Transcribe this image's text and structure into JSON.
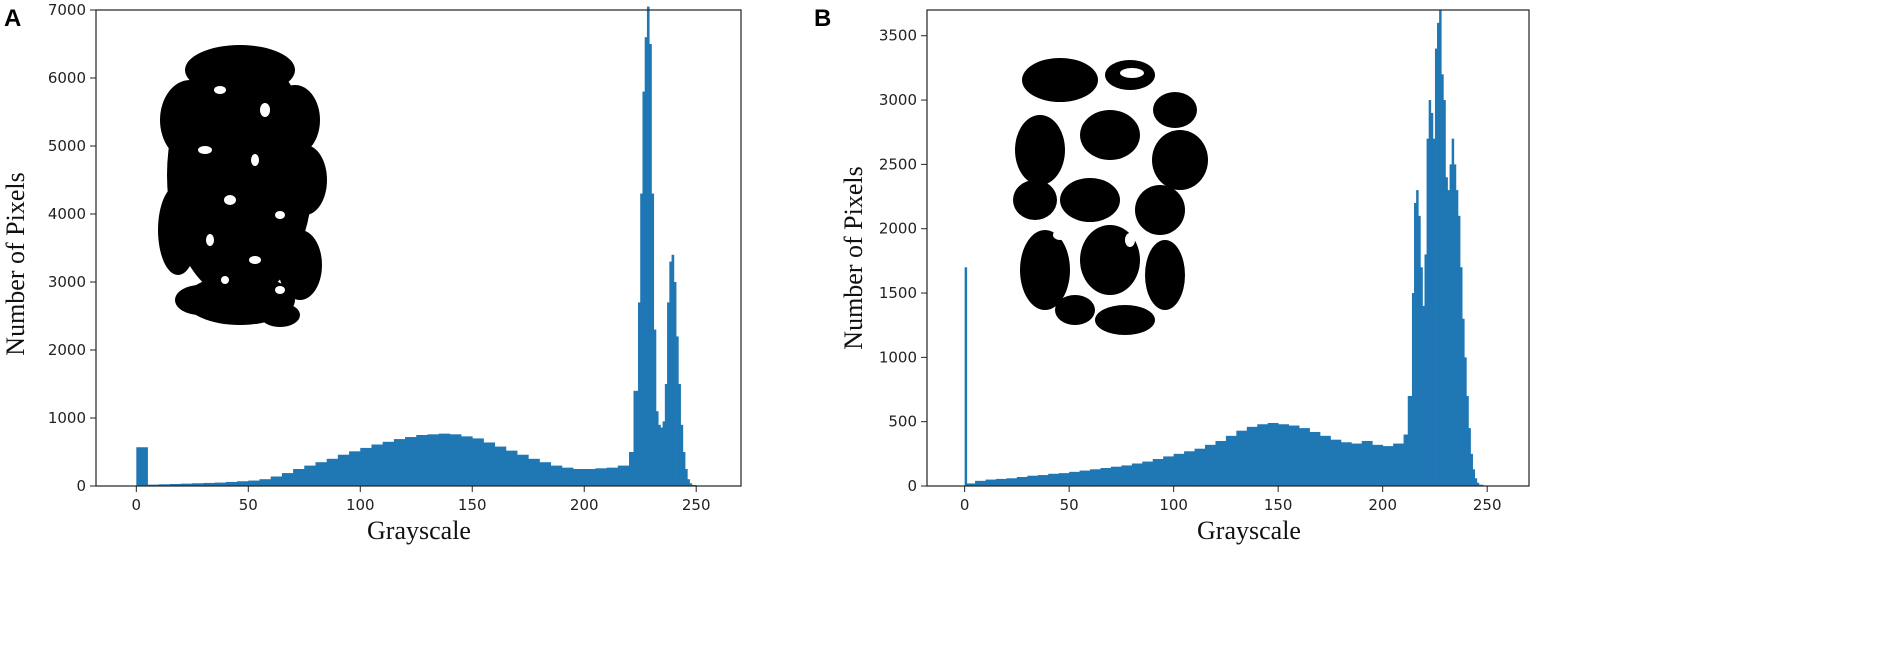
{
  "panels": [
    {
      "letter": "A"
    },
    {
      "letter": "B"
    }
  ],
  "chart_data": [
    {
      "type": "bar",
      "panel": "A",
      "title": "",
      "xlabel": "Grayscale",
      "ylabel": "Number of Pixels",
      "xlim": [
        -18,
        270
      ],
      "ylim": [
        0,
        7000
      ],
      "xticks": [
        0,
        50,
        100,
        150,
        200,
        250
      ],
      "yticks": [
        0,
        1000,
        2000,
        3000,
        4000,
        5000,
        6000,
        7000
      ],
      "bar_color": "#1f77b4",
      "inset": "black blob silhouette (segmented image)",
      "series": [
        {
          "x": [
            0,
            5,
            10,
            15,
            20,
            25,
            30,
            35,
            40,
            45,
            50,
            55,
            60,
            65,
            70,
            75,
            80,
            85,
            90,
            95,
            100,
            105,
            110,
            115,
            120,
            125,
            130,
            135,
            140,
            145,
            150,
            155,
            160,
            165,
            170,
            175,
            180,
            185,
            190,
            195,
            200,
            205,
            210,
            215,
            220,
            222,
            224,
            225,
            226,
            227,
            228,
            229,
            230,
            231,
            232,
            233,
            234,
            235,
            236,
            237,
            238,
            239,
            240,
            241,
            242,
            243,
            244,
            245,
            246,
            247,
            248,
            250,
            253
          ],
          "values": [
            570,
            20,
            25,
            30,
            35,
            40,
            45,
            50,
            60,
            70,
            80,
            100,
            140,
            190,
            250,
            300,
            350,
            400,
            460,
            510,
            560,
            610,
            650,
            690,
            720,
            750,
            760,
            770,
            760,
            730,
            700,
            640,
            580,
            520,
            460,
            400,
            350,
            300,
            270,
            250,
            250,
            260,
            270,
            300,
            500,
            1400,
            2700,
            4300,
            5800,
            6600,
            7050,
            6500,
            4300,
            2300,
            1100,
            900,
            860,
            950,
            1500,
            2700,
            3300,
            3400,
            3000,
            2200,
            1500,
            900,
            500,
            250,
            100,
            40,
            15,
            5,
            0
          ]
        }
      ]
    },
    {
      "type": "bar",
      "panel": "B",
      "title": "",
      "xlabel": "Grayscale",
      "ylabel": "Number of Pixels",
      "xlim": [
        -18,
        270
      ],
      "ylim": [
        0,
        3700
      ],
      "xticks": [
        0,
        50,
        100,
        150,
        200,
        250
      ],
      "yticks": [
        0,
        500,
        1000,
        1500,
        2000,
        2500,
        3000,
        3500
      ],
      "bar_color": "#1f77b4",
      "inset": "black blob silhouette (segmented image)",
      "series": [
        {
          "x": [
            0,
            1,
            5,
            10,
            15,
            20,
            25,
            30,
            35,
            40,
            45,
            50,
            55,
            60,
            65,
            70,
            75,
            80,
            85,
            90,
            95,
            100,
            105,
            110,
            115,
            120,
            125,
            130,
            135,
            140,
            145,
            150,
            155,
            160,
            165,
            170,
            175,
            180,
            185,
            190,
            195,
            200,
            205,
            210,
            212,
            214,
            215,
            216,
            217,
            218,
            219,
            220,
            221,
            222,
            223,
            224,
            225,
            226,
            227,
            228,
            229,
            230,
            231,
            232,
            233,
            234,
            235,
            236,
            237,
            238,
            239,
            240,
            241,
            242,
            243,
            244,
            245,
            246,
            248,
            250,
            253
          ],
          "values": [
            1700,
            20,
            40,
            50,
            55,
            60,
            70,
            80,
            85,
            95,
            100,
            110,
            120,
            130,
            140,
            150,
            160,
            175,
            190,
            210,
            230,
            250,
            270,
            290,
            320,
            350,
            390,
            430,
            460,
            480,
            490,
            480,
            470,
            450,
            420,
            390,
            360,
            340,
            330,
            350,
            320,
            310,
            330,
            400,
            700,
            1500,
            2200,
            2300,
            2100,
            1700,
            1400,
            1800,
            2700,
            3000,
            2900,
            2700,
            3400,
            3600,
            3700,
            3200,
            3000,
            2400,
            2300,
            2500,
            2700,
            2500,
            2300,
            2100,
            1700,
            1300,
            1000,
            700,
            450,
            250,
            130,
            60,
            25,
            10,
            3,
            1,
            0
          ]
        }
      ]
    }
  ]
}
